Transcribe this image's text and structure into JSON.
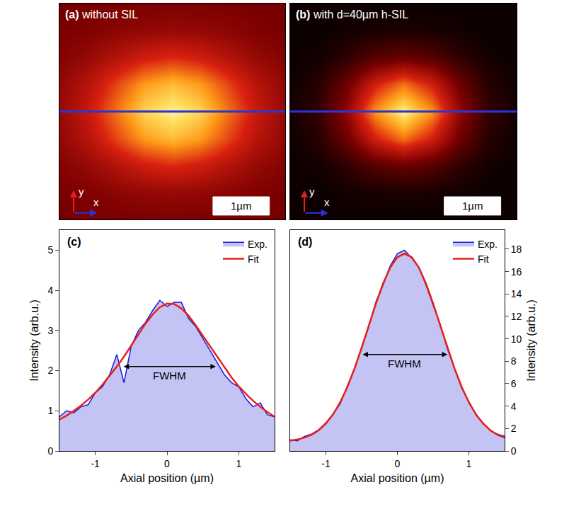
{
  "chart_data": [
    {
      "type": "heatmap",
      "panel": "(a)",
      "title": "without SIL",
      "x": [
        -2,
        -1.5,
        -1,
        -0.5,
        0,
        0.5,
        1,
        1.5,
        2
      ],
      "y": [
        -2,
        -1.5,
        -1,
        -0.5,
        0,
        0.5,
        1,
        1.5,
        2
      ],
      "z": [
        [
          0.3,
          0.31,
          0.31,
          0.32,
          0.32,
          0.32,
          0.31,
          0.31,
          0.3
        ],
        [
          0.31,
          0.33,
          0.36,
          0.38,
          0.39,
          0.38,
          0.36,
          0.33,
          0.31
        ],
        [
          0.34,
          0.39,
          0.47,
          0.55,
          0.59,
          0.55,
          0.47,
          0.39,
          0.34
        ],
        [
          0.38,
          0.48,
          0.64,
          0.79,
          0.86,
          0.79,
          0.64,
          0.48,
          0.38
        ],
        [
          0.39,
          0.53,
          0.72,
          0.92,
          1.0,
          0.92,
          0.72,
          0.53,
          0.39
        ],
        [
          0.38,
          0.48,
          0.64,
          0.79,
          0.86,
          0.79,
          0.64,
          0.48,
          0.38
        ],
        [
          0.34,
          0.39,
          0.47,
          0.55,
          0.59,
          0.55,
          0.47,
          0.39,
          0.34
        ],
        [
          0.31,
          0.33,
          0.36,
          0.38,
          0.39,
          0.38,
          0.36,
          0.33,
          0.31
        ],
        [
          0.3,
          0.31,
          0.31,
          0.32,
          0.32,
          0.32,
          0.31,
          0.31,
          0.3
        ]
      ],
      "zlim": [
        0,
        1.05
      ],
      "xlim": [
        -2,
        2
      ],
      "ylim": [
        -2,
        2
      ],
      "tick_labels": false,
      "profile_y": 0,
      "scale_bar": {
        "length": 1,
        "label": "1µm"
      },
      "axis_labels": {
        "x": "x",
        "y": "y"
      }
    },
    {
      "type": "heatmap",
      "panel": "(b)",
      "title": "with d=40µm h-SIL",
      "x": [
        -2,
        -1.5,
        -1,
        -0.5,
        0,
        0.5,
        1,
        1.5,
        2
      ],
      "y": [
        -2,
        -1.5,
        -1,
        -0.5,
        0,
        0.5,
        1,
        1.5,
        2
      ],
      "z": [
        [
          0.03,
          0.03,
          0.03,
          0.03,
          0.03,
          0.03,
          0.03,
          0.03,
          0.03
        ],
        [
          0.03,
          0.03,
          0.05,
          0.06,
          0.07,
          0.06,
          0.05,
          0.03,
          0.03
        ],
        [
          0.03,
          0.05,
          0.12,
          0.22,
          0.27,
          0.22,
          0.12,
          0.05,
          0.03
        ],
        [
          0.04,
          0.1,
          0.28,
          0.56,
          0.72,
          0.56,
          0.28,
          0.1,
          0.04
        ],
        [
          0.05,
          0.13,
          0.38,
          0.78,
          1.0,
          0.78,
          0.38,
          0.13,
          0.05
        ],
        [
          0.04,
          0.1,
          0.28,
          0.56,
          0.72,
          0.56,
          0.28,
          0.1,
          0.04
        ],
        [
          0.03,
          0.05,
          0.12,
          0.22,
          0.27,
          0.22,
          0.12,
          0.05,
          0.03
        ],
        [
          0.03,
          0.03,
          0.05,
          0.06,
          0.07,
          0.06,
          0.05,
          0.03,
          0.03
        ],
        [
          0.03,
          0.03,
          0.03,
          0.03,
          0.03,
          0.03,
          0.03,
          0.03,
          0.03
        ]
      ],
      "zlim": [
        0,
        1.05
      ],
      "xlim": [
        -2,
        2
      ],
      "ylim": [
        -2,
        2
      ],
      "tick_labels": false,
      "profile_y": 0,
      "scale_bar": {
        "length": 1,
        "label": "1µm"
      },
      "axis_labels": {
        "x": "x",
        "y": "y"
      }
    },
    {
      "type": "line",
      "panel": "(c)",
      "x": [
        -1.5,
        -1.4,
        -1.3,
        -1.2,
        -1.1,
        -1.0,
        -0.9,
        -0.8,
        -0.7,
        -0.6,
        -0.5,
        -0.4,
        -0.3,
        -0.2,
        -0.1,
        0,
        0.1,
        0.2,
        0.3,
        0.4,
        0.5,
        0.6,
        0.7,
        0.8,
        0.9,
        1.0,
        1.1,
        1.2,
        1.3,
        1.4,
        1.5
      ],
      "series": [
        {
          "name": "Exp.",
          "color": "#1a1adc",
          "values": [
            0.85,
            1.0,
            0.95,
            1.1,
            1.15,
            1.45,
            1.6,
            1.9,
            2.4,
            1.7,
            2.6,
            3.0,
            3.2,
            3.5,
            3.75,
            3.6,
            3.7,
            3.7,
            3.3,
            3.1,
            2.8,
            2.5,
            2.2,
            1.9,
            1.7,
            1.6,
            1.3,
            1.1,
            1.2,
            0.9,
            0.85
          ]
        },
        {
          "name": "Fit",
          "color": "#e8201a",
          "values": [
            0.78,
            0.88,
            1.0,
            1.13,
            1.28,
            1.45,
            1.65,
            1.87,
            2.1,
            2.35,
            2.62,
            2.9,
            3.17,
            3.4,
            3.58,
            3.67,
            3.66,
            3.55,
            3.37,
            3.13,
            2.87,
            2.6,
            2.33,
            2.07,
            1.83,
            1.61,
            1.42,
            1.25,
            1.1,
            0.97,
            0.85
          ]
        }
      ],
      "xlabel": "Axial position (µm)",
      "ylabel": "Intensity (arb.u.)",
      "xlim": [
        -1.5,
        1.5
      ],
      "xticks": [
        -1,
        0,
        1
      ],
      "ylim": [
        0,
        5.5
      ],
      "yticks": [
        0,
        1,
        2,
        3,
        4,
        5
      ],
      "grid": false,
      "legend": "upper right",
      "fwhm": {
        "x0": -0.62,
        "x1": 0.68,
        "y": 2.1,
        "label": "FWHM"
      }
    },
    {
      "type": "line",
      "panel": "(d)",
      "x": [
        -1.5,
        -1.4,
        -1.3,
        -1.2,
        -1.1,
        -1.0,
        -0.9,
        -0.8,
        -0.7,
        -0.6,
        -0.5,
        -0.4,
        -0.3,
        -0.2,
        -0.1,
        0,
        0.1,
        0.2,
        0.3,
        0.4,
        0.5,
        0.6,
        0.7,
        0.8,
        0.9,
        1.0,
        1.1,
        1.2,
        1.3,
        1.4,
        1.5
      ],
      "series": [
        {
          "name": "Exp.",
          "color": "#1a1adc",
          "values": [
            1.0,
            0.9,
            1.3,
            1.5,
            1.9,
            2.5,
            3.3,
            4.2,
            5.8,
            7.3,
            9.3,
            11.1,
            13.3,
            14.8,
            16.5,
            17.6,
            17.9,
            17.2,
            16.4,
            14.8,
            13.0,
            11.3,
            9.1,
            7.4,
            5.6,
            4.4,
            3.2,
            2.5,
            1.8,
            1.5,
            1.3
          ]
        },
        {
          "name": "Fit",
          "color": "#e8201a",
          "values": [
            0.92,
            1.02,
            1.19,
            1.45,
            1.85,
            2.44,
            3.26,
            4.34,
            5.7,
            7.35,
            9.2,
            11.18,
            13.15,
            14.93,
            16.36,
            17.28,
            17.6,
            17.28,
            16.36,
            14.93,
            13.15,
            11.18,
            9.2,
            7.35,
            5.7,
            4.34,
            3.26,
            2.44,
            1.85,
            1.45,
            1.19
          ]
        }
      ],
      "xlabel": "Axial position (µm)",
      "ylabel": "Intensity (arb.u.)",
      "xlim": [
        -1.5,
        1.5
      ],
      "xticks": [
        -1,
        0,
        1
      ],
      "ylim": [
        0,
        19.7
      ],
      "yticks": [
        0,
        2,
        4,
        6,
        8,
        10,
        12,
        14,
        16,
        18
      ],
      "grid": false,
      "legend": "upper right",
      "fwhm": {
        "x0": -0.5,
        "x1": 0.7,
        "y": 8.6,
        "label": "FWHM"
      }
    }
  ]
}
